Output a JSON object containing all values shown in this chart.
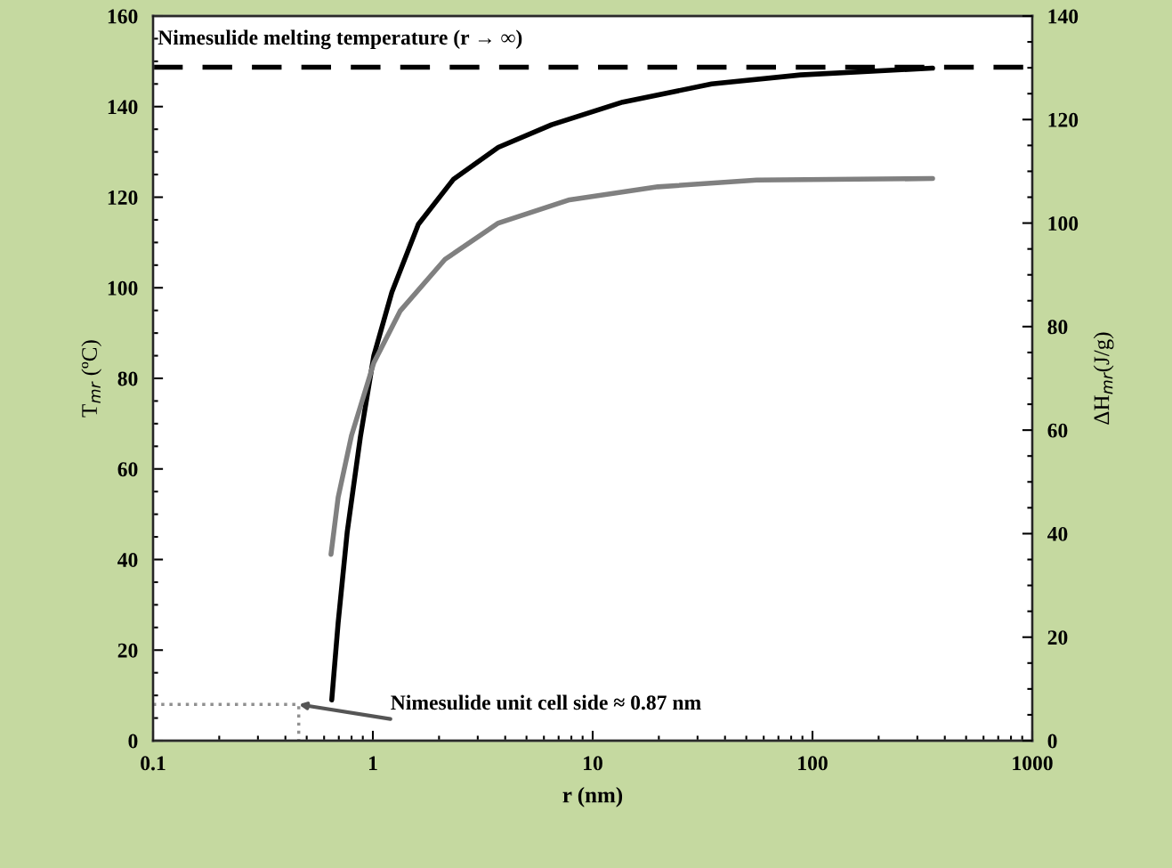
{
  "chart_data": {
    "type": "line",
    "xlabel": "r (nm)",
    "ylabel": "T$_{mr}$ (ºC)",
    "y2label": "ΔH$_{mr}$(J/g)",
    "log": "x",
    "xlim": [
      0.1,
      1000
    ],
    "xticks": [
      0.1,
      1,
      10,
      100,
      1000
    ],
    "ylim": [
      0,
      160
    ],
    "yticks": [
      0,
      20,
      40,
      60,
      80,
      100,
      120,
      140,
      160
    ],
    "y2lim": [
      0,
      140
    ],
    "y2ticks": [
      0,
      20,
      40,
      60,
      80,
      100,
      120,
      140
    ],
    "grid": false,
    "marker": "none",
    "series": [
      {
        "color": "#000000",
        "line_style": "solid",
        "x": [
          0.65,
          0.695,
          0.764,
          0.877,
          1.01,
          1.22,
          1.61,
          2.33,
          3.72,
          6.5,
          13.7,
          34.8,
          88.5,
          352
        ],
        "values": [
          9,
          26,
          46,
          67,
          85,
          99,
          114,
          124,
          131,
          136,
          141,
          145,
          147,
          148.5
        ]
      },
      {
        "color": "#808080",
        "axis": "y2",
        "line_style": "solid",
        "x": [
          0.645,
          0.695,
          0.8,
          1.01,
          1.33,
          2.13,
          3.72,
          7.85,
          19.8,
          55.7,
          352
        ],
        "values": [
          36,
          47,
          59,
          73,
          83,
          93,
          100,
          104.5,
          107,
          108.3,
          108.6
        ]
      },
      {
        "color": "#909090",
        "line_style": "dotted",
        "x": [
          0.1,
          0.46,
          0.46
        ],
        "values": [
          8,
          8,
          0
        ]
      }
    ],
    "ref_lines": [
      {
        "axis": "y",
        "value": 148.7,
        "label": "Nimesulide melting temperature (r → ∞)",
        "color": "#000000",
        "line_style": "dashed"
      }
    ],
    "annotations": [
      "Nimesulide unit cell side ≈ 0.87 nm"
    ]
  }
}
